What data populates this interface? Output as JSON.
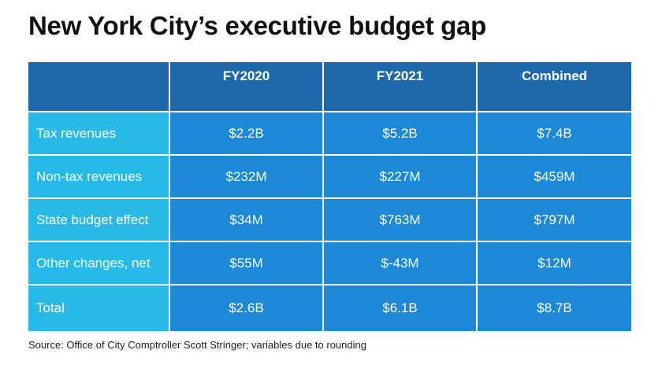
{
  "title": "New York City’s executive budget gap",
  "chart_data": {
    "type": "table",
    "columns": [
      "",
      "FY2020",
      "FY2021",
      "Combined"
    ],
    "rows": [
      {
        "label": "Tax revenues",
        "values": [
          "$2.2B",
          "$5.2B",
          "$7.4B"
        ]
      },
      {
        "label": "Non-tax revenues",
        "values": [
          "$232M",
          "$227M",
          "$459M"
        ]
      },
      {
        "label": "State budget effect",
        "values": [
          "$34M",
          "$763M",
          "$797M"
        ]
      },
      {
        "label": "Other changes, net",
        "values": [
          "$55M",
          "$-43M",
          "$12M"
        ]
      },
      {
        "label": "Total",
        "values": [
          "$2.6B",
          "$6.1B",
          "$8.7B"
        ]
      }
    ]
  },
  "source": "Source: Office of City Comptroller Scott Stringer; variables due to rounding",
  "colors": {
    "header": "#1e69a9",
    "row_label": "#27b9e8",
    "value_cell": "#1b89d8"
  }
}
